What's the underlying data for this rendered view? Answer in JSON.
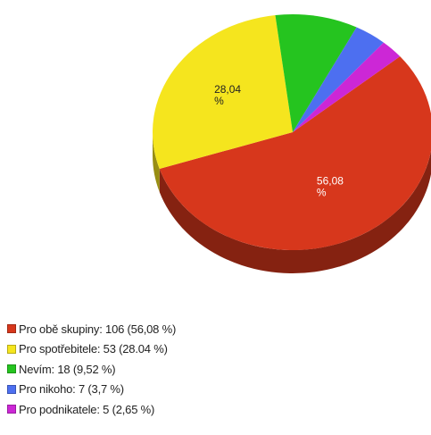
{
  "chart_data": {
    "type": "pie",
    "style": "3d",
    "legend_position": "bottom-left",
    "slices": [
      {
        "label": "Pro obě skupiny",
        "value": 106,
        "percent": 56.08,
        "percent_text": "56,08",
        "legend_text": "Pro obě skupiny: 106 (56,08 %)",
        "color": "#d7371c"
      },
      {
        "label": "Pro spotřebitele",
        "value": 53,
        "percent": 28.04,
        "percent_text": "28,04",
        "legend_text": "Pro spotřebitele: 53 (28.04 %)",
        "color": "#f5e51e"
      },
      {
        "label": "Nevím",
        "value": 18,
        "percent": 9.52,
        "percent_text": "",
        "legend_text": "Nevím: 18 (9,52 %)",
        "color": "#25c41f"
      },
      {
        "label": "Pro nikoho",
        "value": 7,
        "percent": 3.7,
        "percent_text": "",
        "legend_text": "Pro nikoho: 7 (3,7 %)",
        "color": "#4d6ff0"
      },
      {
        "label": "Pro podnikatele",
        "value": 5,
        "percent": 2.65,
        "percent_text": "",
        "legend_text": "Pro podnikatele: 5 (2,65 %)",
        "color": "#cc27d6"
      }
    ],
    "percent_suffix": "%"
  }
}
